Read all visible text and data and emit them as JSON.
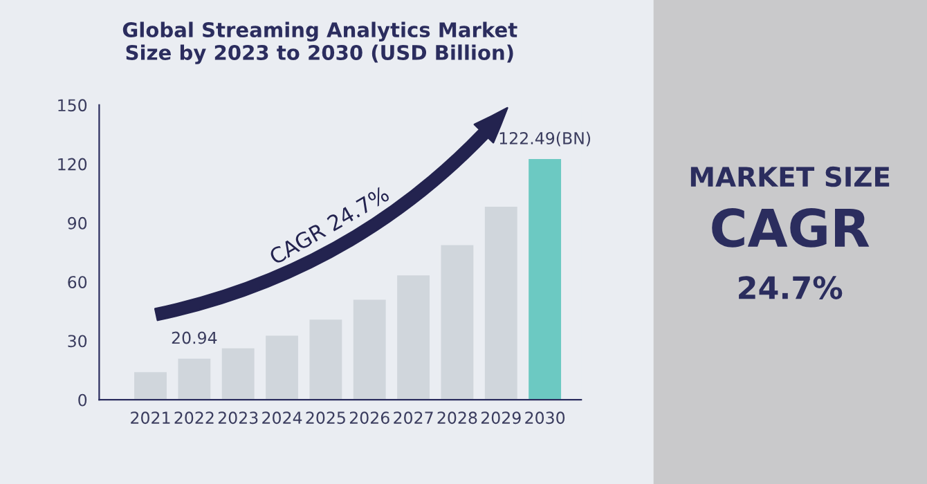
{
  "chart_data": {
    "type": "bar",
    "title": "Global Streaming Analytics Market\nSize by 2023 to 2030 (USD Billion)",
    "categories": [
      "2021",
      "2022",
      "2023",
      "2024",
      "2025",
      "2026",
      "2027",
      "2028",
      "2029",
      "2030"
    ],
    "values": [
      14.1,
      20.94,
      26.2,
      32.6,
      40.8,
      50.9,
      63.3,
      78.7,
      98.2,
      122.49
    ],
    "value_labels": [
      null,
      "20.94",
      null,
      null,
      null,
      null,
      null,
      null,
      null,
      "122.49(BN)"
    ],
    "colors": [
      "#d0d6dc",
      "#d0d6dc",
      "#d0d6dc",
      "#d0d6dc",
      "#d0d6dc",
      "#d0d6dc",
      "#d0d6dc",
      "#d0d6dc",
      "#d0d6dc",
      "#6cc9c2"
    ],
    "ylim": [
      0,
      150
    ],
    "yticks": [
      0,
      30,
      60,
      90,
      120,
      150
    ],
    "grid": false,
    "annotations": [
      "CAGR 24.7%",
      "MARKET SIZE",
      "CAGR",
      "24.7%"
    ]
  }
}
